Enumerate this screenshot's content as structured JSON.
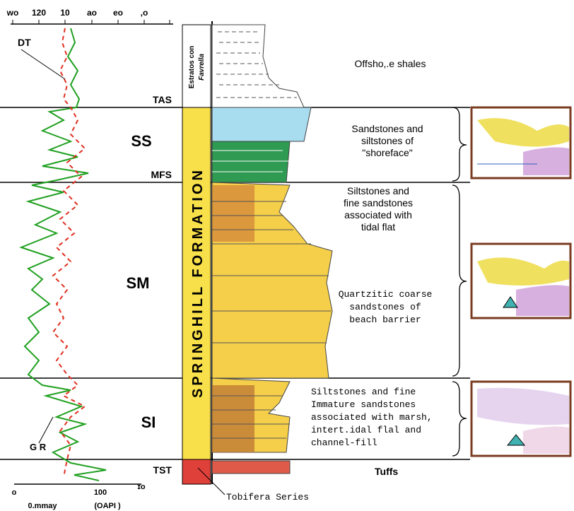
{
  "log_axis": {
    "top_ticks": [
      "wo",
      "120",
      "10",
      "ao",
      "eo",
      ",o"
    ],
    "bottom_ticks": [
      "o",
      "100",
      "ɪo"
    ],
    "bottom_label": [
      "0.mmay",
      "(OAPI )"
    ]
  },
  "curve_labels": {
    "dt": "DT",
    "gr": "G R"
  },
  "surfaces": {
    "tas": "TAS",
    "mfs": "MFS",
    "tst": "TST"
  },
  "units": {
    "ss": "SS",
    "sm": "SM",
    "si": "SI"
  },
  "column": {
    "estratos": [
      "Estratos con",
      "Favrella"
    ],
    "formation": "SPRINGHILL FORMATION"
  },
  "descriptions": [
    [
      "Offsho,.e shales"
    ],
    [
      "Sandstones and",
      "siltstones of",
      "\"shoreface\""
    ],
    [
      "Siltstones and",
      "fine sandstones",
      "associated with",
      "tidal flat"
    ],
    [
      "Quartzitic coarse",
      "sandstones of",
      "beach barrier"
    ],
    [
      "Siltstones and fine",
      "Immature sandstones",
      "associated with marsh,",
      "intert.idal flal and",
      "channel-fill"
    ]
  ],
  "tuffs": "Tuffs",
  "tobifera": "Tobifera Series"
}
